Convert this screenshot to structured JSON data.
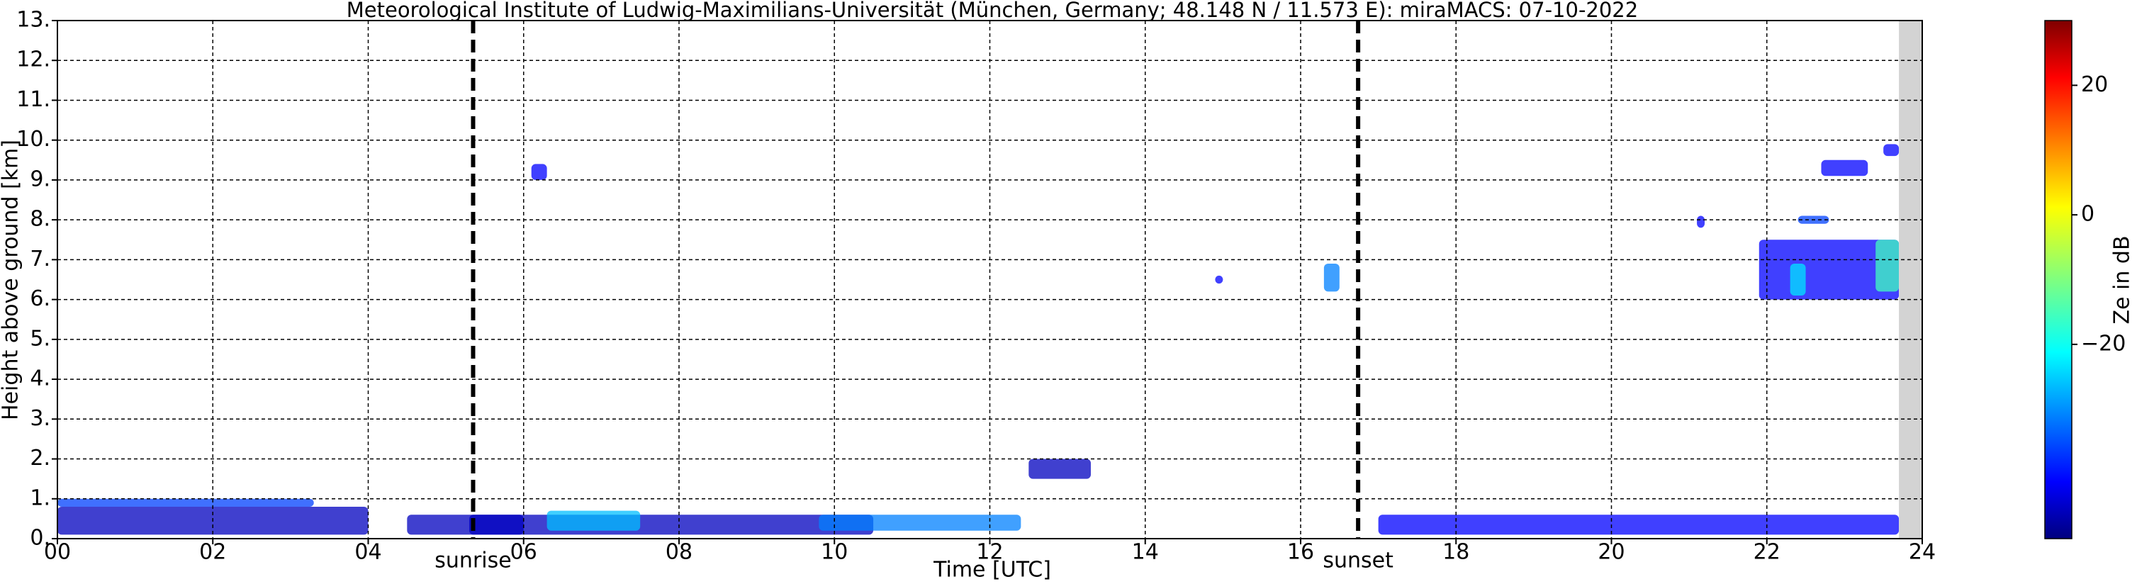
{
  "chart_data": {
    "type": "time-height",
    "title": "Meteorological Institute of Ludwig-Maximilians-Universität (München, Germany; 48.148 N / 11.573 E):    miraMACS: 07-10-2022",
    "x_label": "Time [UTC]",
    "y_label": "Height above ground [km]",
    "xlim": [
      0,
      24
    ],
    "xticks": [
      {
        "value": 0,
        "label": "00"
      },
      {
        "value": 2,
        "label": "02"
      },
      {
        "value": 4,
        "label": "04"
      },
      {
        "value": 6,
        "label": "06"
      },
      {
        "value": 8,
        "label": "08"
      },
      {
        "value": 10,
        "label": "10"
      },
      {
        "value": 12,
        "label": "12"
      },
      {
        "value": 14,
        "label": "14"
      },
      {
        "value": 16,
        "label": "16"
      },
      {
        "value": 18,
        "label": "18"
      },
      {
        "value": 20,
        "label": "20"
      },
      {
        "value": 22,
        "label": "22"
      },
      {
        "value": 24,
        "label": "24"
      }
    ],
    "ylim": [
      0,
      13
    ],
    "yticks": [
      {
        "value": 0,
        "label": "0."
      },
      {
        "value": 1,
        "label": "1."
      },
      {
        "value": 2,
        "label": "2."
      },
      {
        "value": 3,
        "label": "3."
      },
      {
        "value": 4,
        "label": "4."
      },
      {
        "value": 5,
        "label": "5."
      },
      {
        "value": 6,
        "label": "6."
      },
      {
        "value": 7,
        "label": "7."
      },
      {
        "value": 8,
        "label": "8."
      },
      {
        "value": 9,
        "label": "9."
      },
      {
        "value": 10,
        "label": "10."
      },
      {
        "value": 11,
        "label": "11."
      },
      {
        "value": 12,
        "label": "12."
      },
      {
        "value": 13,
        "label": "13."
      }
    ],
    "grid": true,
    "markers": [
      {
        "label": "sunrise",
        "x": 5.35
      },
      {
        "label": "sunset",
        "x": 16.74
      }
    ],
    "no_data": [
      23.7,
      24
    ],
    "colorbar_label": "Ze in dB",
    "clim": [
      -50,
      30
    ],
    "cticks": [
      {
        "value": -20,
        "label": "−20"
      },
      0,
      20
    ],
    "echoes": [
      {
        "x": [
          0,
          3.3
        ],
        "y": [
          0.8,
          1.0
        ],
        "ze": -35
      },
      {
        "x": [
          0,
          4
        ],
        "y": [
          0.1,
          0.8
        ],
        "ze": -45
      },
      {
        "x": [
          4.5,
          6
        ],
        "y": [
          0.1,
          0.6
        ],
        "ze": -45
      },
      {
        "x": [
          5.3,
          10.5
        ],
        "y": [
          0.1,
          0.6
        ],
        "ze": -45
      },
      {
        "x": [
          6.3,
          7.5
        ],
        "y": [
          0.2,
          0.7
        ],
        "ze": -25
      },
      {
        "x": [
          6.1,
          6.3
        ],
        "y": [
          9.0,
          9.4
        ],
        "ze": -40
      },
      {
        "x": [
          9.8,
          12.4
        ],
        "y": [
          0.2,
          0.6
        ],
        "ze": -30
      },
      {
        "x": [
          12.5,
          13.3
        ],
        "y": [
          1.5,
          2.0
        ],
        "ze": -45
      },
      {
        "x": [
          14.9,
          15.0
        ],
        "y": [
          6.4,
          6.6
        ],
        "ze": -40
      },
      {
        "x": [
          16.3,
          16.5
        ],
        "y": [
          6.2,
          6.9
        ],
        "ze": -30
      },
      {
        "x": [
          17,
          23.7
        ],
        "y": [
          0.1,
          0.6
        ],
        "ze": -40
      },
      {
        "x": [
          21.9,
          23.7
        ],
        "y": [
          6.0,
          7.5
        ],
        "ze": -40
      },
      {
        "x": [
          22.3,
          22.5
        ],
        "y": [
          6.1,
          6.9
        ],
        "ze": -22
      },
      {
        "x": [
          23.4,
          23.7
        ],
        "y": [
          6.2,
          7.5
        ],
        "ze": -15
      },
      {
        "x": [
          22.7,
          23.3
        ],
        "y": [
          9.1,
          9.5
        ],
        "ze": -40
      },
      {
        "x": [
          23.5,
          23.7
        ],
        "y": [
          9.6,
          9.9
        ],
        "ze": -40
      },
      {
        "x": [
          21.1,
          21.2
        ],
        "y": [
          7.8,
          8.1
        ],
        "ze": -40
      },
      {
        "x": [
          22.4,
          22.8
        ],
        "y": [
          7.9,
          8.1
        ],
        "ze": -35
      }
    ]
  }
}
